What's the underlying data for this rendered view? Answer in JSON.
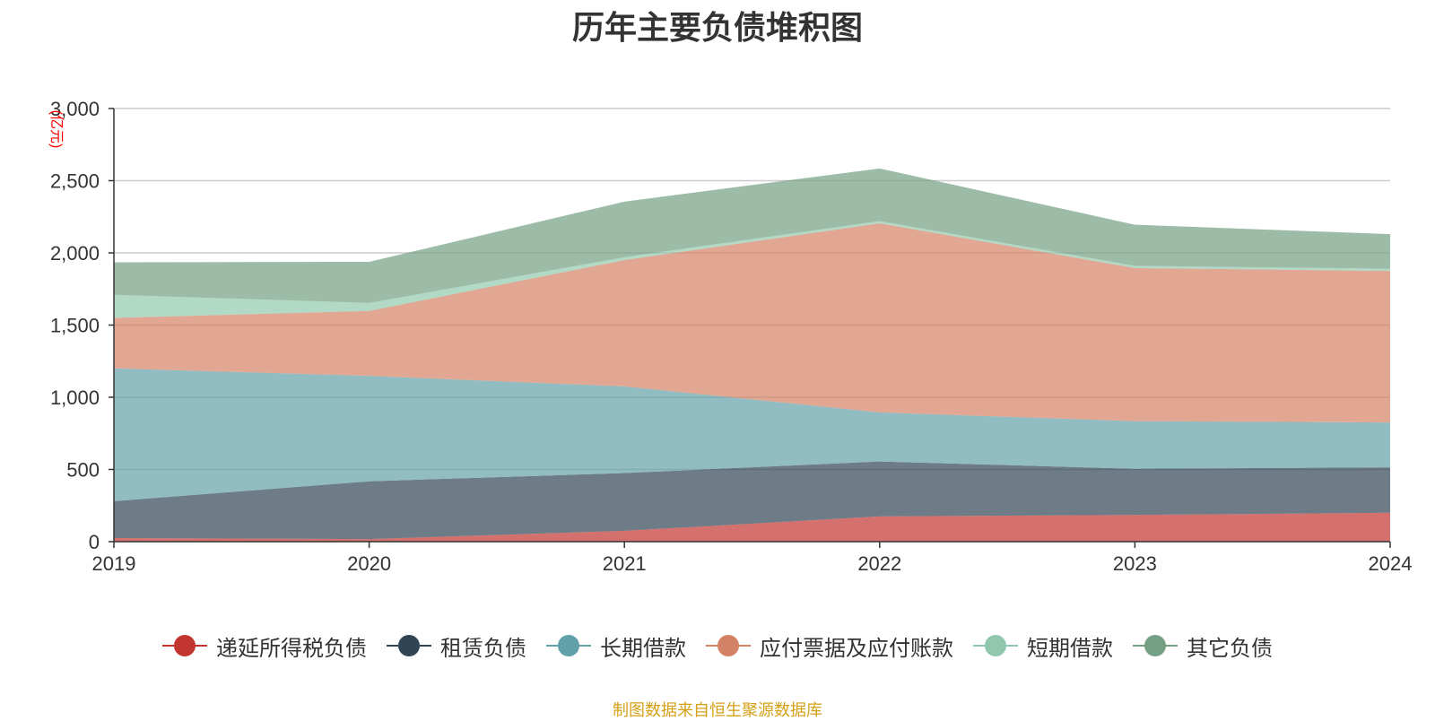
{
  "chart_data": {
    "type": "area",
    "stacked": true,
    "title": "历年主要负债堆积图",
    "unit_label": "(亿元)",
    "x": [
      "2019",
      "2020",
      "2021",
      "2022",
      "2023",
      "2024"
    ],
    "ylim": [
      0,
      3000
    ],
    "y_ticks": [
      "0",
      "500",
      "1,000",
      "1,500",
      "2,000",
      "2,500",
      "3,000"
    ],
    "grid": true,
    "legend_position": "bottom",
    "series": [
      {
        "name": "递延所得税负债",
        "color": "#c23531",
        "values": [
          25,
          18,
          75,
          175,
          185,
          200
        ]
      },
      {
        "name": "租赁负债",
        "color": "#2f4554",
        "values": [
          255,
          400,
          400,
          380,
          320,
          315
        ]
      },
      {
        "name": "长期借款",
        "color": "#61a0a8",
        "values": [
          920,
          730,
          600,
          340,
          330,
          310
        ]
      },
      {
        "name": "应付票据及应付账款",
        "color": "#d48265",
        "values": [
          350,
          450,
          875,
          1310,
          1060,
          1050
        ]
      },
      {
        "name": "短期借款",
        "color": "#91c7ae",
        "values": [
          160,
          55,
          20,
          15,
          15,
          15
        ]
      },
      {
        "name": "其它负债",
        "color": "#749f83",
        "values": [
          225,
          285,
          385,
          365,
          285,
          240
        ]
      }
    ]
  },
  "source_note": "制图数据来自恒生聚源数据库"
}
